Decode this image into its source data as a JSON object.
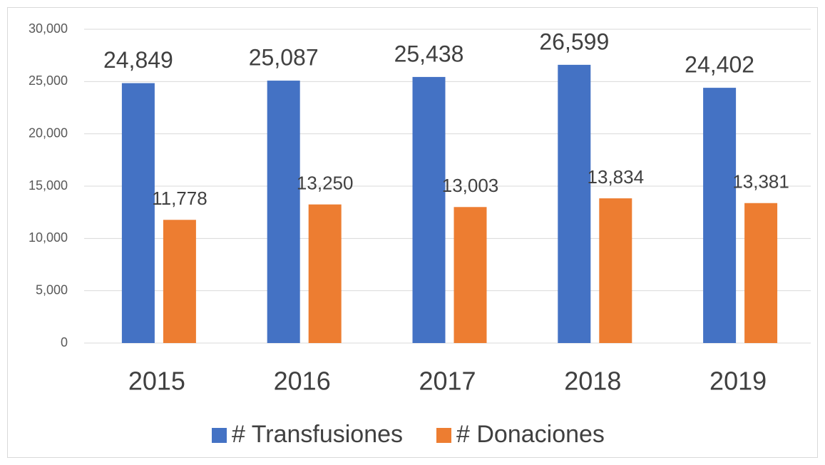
{
  "chart_data": {
    "type": "bar",
    "categories": [
      "2015",
      "2016",
      "2017",
      "2018",
      "2019"
    ],
    "series": [
      {
        "name": "# Transfusiones",
        "color": "#4472c4",
        "values": [
          24849,
          25087,
          25438,
          26599,
          24402
        ],
        "value_labels": [
          "24,849",
          "25,087",
          "25,438",
          "26,599",
          "24,402"
        ]
      },
      {
        "name": "# Donaciones",
        "color": "#ed7d31",
        "values": [
          11778,
          13250,
          13003,
          13834,
          13381
        ],
        "value_labels": [
          "11,778",
          "13,250",
          "13,003",
          "13,834",
          "13,381"
        ]
      }
    ],
    "ylim": [
      0,
      30000
    ],
    "yticks": [
      0,
      {
        "value": 5000,
        "label": "5,000"
      },
      {
        "value": 10000,
        "label": "10,000"
      },
      {
        "value": 15000,
        "label": "15,000"
      },
      {
        "value": 20000,
        "label": "20,000"
      },
      {
        "value": 25000,
        "label": "25,000"
      },
      {
        "value": 30000,
        "label": "30,000"
      }
    ],
    "grid": true,
    "legend": "bottom"
  }
}
